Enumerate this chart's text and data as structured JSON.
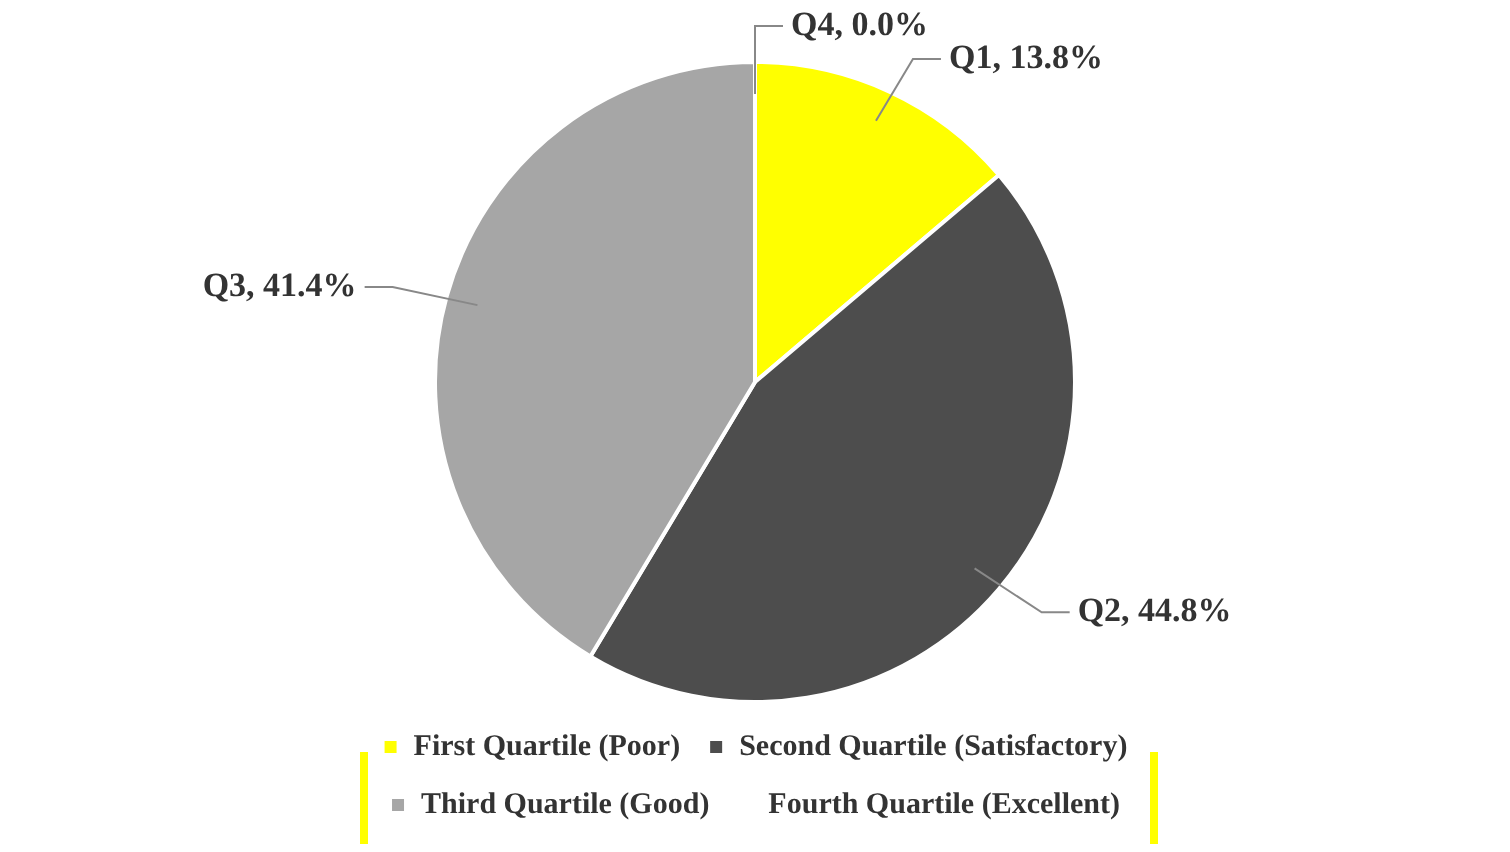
{
  "chart_data": {
    "type": "pie",
    "categories": [
      "First Quartile (Poor)",
      "Second Quartile (Satisfactory)",
      "Third Quartile (Good)",
      "Fourth Quartile (Excellent)"
    ],
    "values": [
      13.8,
      44.8,
      41.4,
      0.0
    ],
    "colors": [
      "#ffff00",
      "#4d4d4d",
      "#a6a6a6",
      "#ffffff"
    ],
    "value_labels": [
      "Q1, 13.8%",
      "Q2, 44.8%",
      "Q3, 41.4%",
      "Q4, 0.0%"
    ],
    "legend": "bottom"
  }
}
